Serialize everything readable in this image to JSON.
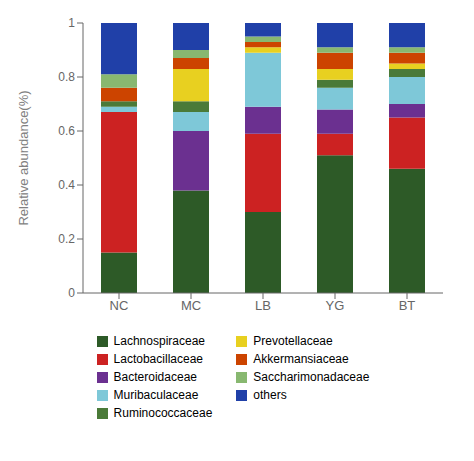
{
  "chart_data": {
    "type": "bar",
    "stacked": true,
    "categories": [
      "NC",
      "MC",
      "LB",
      "YG",
      "BT"
    ],
    "series": [
      {
        "name": "Lachnospiraceae",
        "color": "#2d5a27",
        "values": [
          0.15,
          0.38,
          0.3,
          0.51,
          0.46
        ]
      },
      {
        "name": "Lactobacillaceae",
        "color": "#cc2222",
        "values": [
          0.52,
          0.0,
          0.29,
          0.08,
          0.19
        ]
      },
      {
        "name": "Bacteroidaceae",
        "color": "#6b3090",
        "values": [
          0.0,
          0.22,
          0.1,
          0.09,
          0.05
        ]
      },
      {
        "name": "Muribaculaceae",
        "color": "#7ec8d8",
        "values": [
          0.02,
          0.07,
          0.2,
          0.08,
          0.1
        ]
      },
      {
        "name": "Ruminococcaceae",
        "color": "#4a7a38",
        "values": [
          0.02,
          0.04,
          0.0,
          0.03,
          0.03
        ]
      },
      {
        "name": "Prevotellaceae",
        "color": "#e8d020",
        "values": [
          0.0,
          0.12,
          0.02,
          0.04,
          0.02
        ]
      },
      {
        "name": "Akkermansiaceae",
        "color": "#cc4400",
        "values": [
          0.05,
          0.04,
          0.02,
          0.06,
          0.04
        ]
      },
      {
        "name": "Saccharimonadaceae",
        "color": "#88b870",
        "values": [
          0.05,
          0.03,
          0.02,
          0.02,
          0.02
        ]
      },
      {
        "name": "others",
        "color": "#2040a8",
        "values": [
          0.19,
          0.1,
          0.05,
          0.09,
          0.09
        ]
      }
    ],
    "ylabel": "Relative abundance(%)",
    "ylim": [
      0,
      1.0
    ],
    "yticks": [
      0,
      0.2,
      0.4,
      0.6,
      0.8,
      1
    ],
    "grid": false,
    "legend": "bottom"
  }
}
